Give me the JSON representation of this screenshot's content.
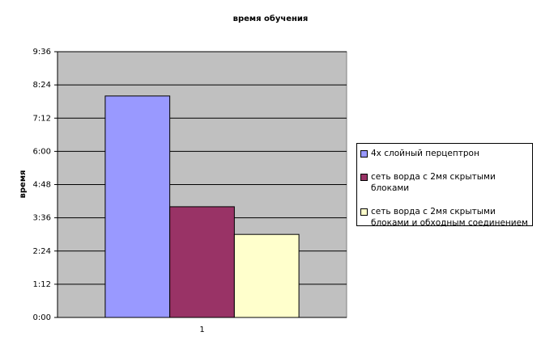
{
  "chart_data": {
    "type": "bar",
    "title": "время обучения",
    "y_label": "время",
    "categories": [
      "1"
    ],
    "series": [
      {
        "name": "4х слойный перцептрон",
        "color": "#9999ff",
        "values": [
          8.0
        ]
      },
      {
        "name": "сеть ворда с 2мя скрытыми блоками",
        "color": "#993366",
        "values": [
          4.0
        ]
      },
      {
        "name": "сеть ворда с 2мя скрытыми блоками и обходным соединением",
        "color": "#ffffcc",
        "values": [
          3.0
        ]
      }
    ],
    "ylim": [
      0,
      9.6
    ],
    "yticks": [
      {
        "value": 0,
        "label": "0:00"
      },
      {
        "value": 1.2,
        "label": "1:12"
      },
      {
        "value": 2.4,
        "label": "2:24"
      },
      {
        "value": 3.6,
        "label": "3:36"
      },
      {
        "value": 4.8,
        "label": "4:48"
      },
      {
        "value": 6,
        "label": "6:00"
      },
      {
        "value": 7.2,
        "label": "7:12"
      },
      {
        "value": 8.4,
        "label": "8:24"
      },
      {
        "value": 9.6,
        "label": "9:36"
      }
    ],
    "grid": true,
    "legend": "right"
  }
}
